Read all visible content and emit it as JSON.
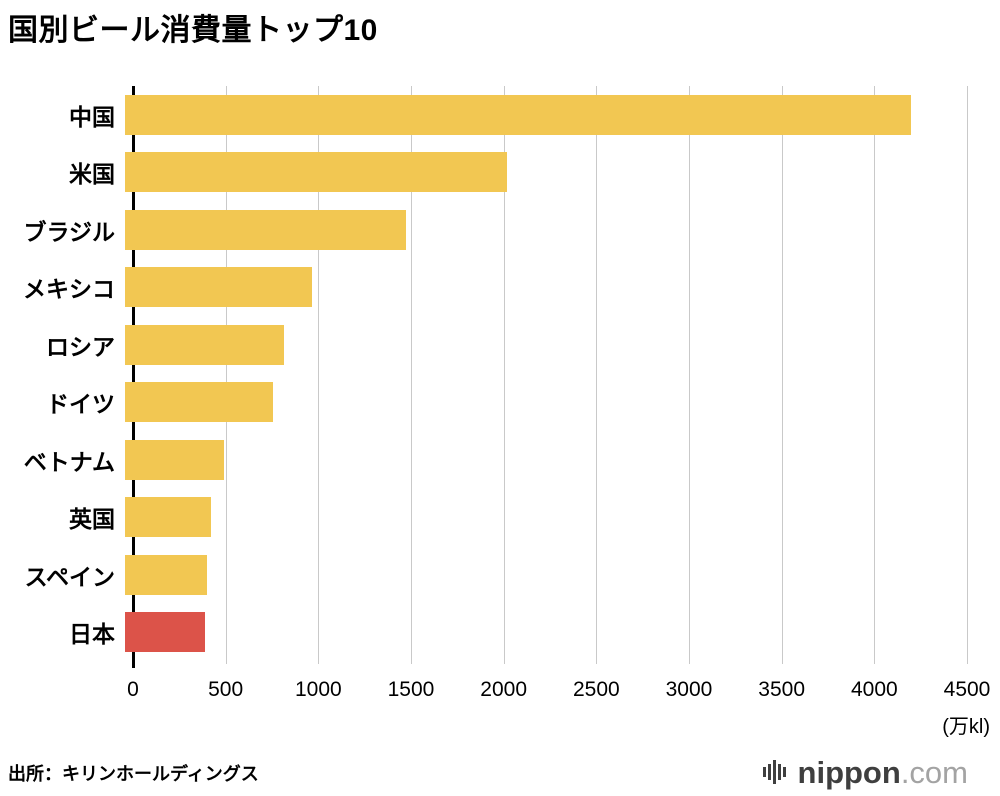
{
  "title": "国別ビール消費量トップ10",
  "source": "出所：キリンホールディングス",
  "logo": {
    "primary": "nippon",
    "suffix": ".com"
  },
  "chart_data": {
    "type": "bar",
    "orientation": "horizontal",
    "title": "国別ビール消費量トップ10",
    "categories": [
      "中国",
      "米国",
      "ブラジル",
      "メキシコ",
      "ロシア",
      "ドイツ",
      "ベトナム",
      "英国",
      "スペイン",
      "日本"
    ],
    "values": [
      4200,
      2040,
      1500,
      1000,
      850,
      790,
      530,
      460,
      440,
      430
    ],
    "unit": "(万kl)",
    "xlabel": "",
    "ylabel": "",
    "xlim": [
      0,
      4500
    ],
    "xticks": [
      0,
      500,
      1000,
      1500,
      2000,
      2500,
      3000,
      3500,
      4000,
      4500
    ],
    "grid": true,
    "legend": false,
    "bar_color": "#F2C752",
    "highlight_index": 9,
    "highlight_color": "#DC5349",
    "axis_color": "#000000",
    "gridline_color": "#c9c9c9"
  }
}
